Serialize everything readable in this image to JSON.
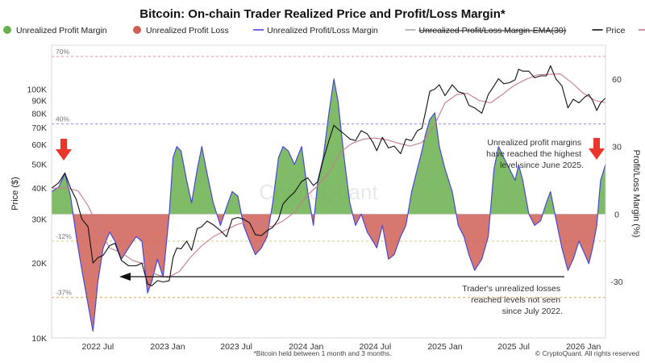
{
  "chart_data": {
    "type": "area",
    "title": "Bitcoin: On-chain Trader Realized Price and Profit/Loss Margin*",
    "footnote": "*Bitcoin held between 1 month and 3 months.",
    "copyright": "© CryptoQuant. All rights reserved",
    "watermark": "CryptoQuant",
    "legend_position": "top",
    "legend": [
      {
        "label": "Unrealized Profit Margin",
        "kind": "dot",
        "color": "#6aaf4e",
        "strike": false
      },
      {
        "label": "Unrealized Profit Loss",
        "kind": "dot",
        "color": "#cf5f57",
        "strike": false
      },
      {
        "label": "Unrealized Profit/Loss Margin",
        "kind": "line",
        "color": "#4848d8",
        "strike": false
      },
      {
        "label": "Unrealized Profit/Loss Margin-EMA(30)",
        "kind": "line",
        "color": "#a8a8a8",
        "strike": true
      },
      {
        "label": "Price",
        "kind": "line",
        "color": "#111111",
        "strike": false
      },
      {
        "label": "Realized Price",
        "kind": "line",
        "color": "#c77a8e",
        "strike": false
      }
    ],
    "colors": {
      "profit": "#6aaf4e",
      "loss": "#cf5f57",
      "margin": "#4848d8",
      "price": "#111111",
      "realized": "#c77a8e",
      "ref_top": "#d98a8a",
      "ref_bottom": "#7e7ee0"
    },
    "x_axis": {
      "range": [
        "2022-03-01",
        "2026-02-28"
      ],
      "ticks": [
        {
          "date": "2022-07-01",
          "label": "2022 Jul"
        },
        {
          "date": "2023-01-01",
          "label": "2023 Jan"
        },
        {
          "date": "2023-07-01",
          "label": "2023 Jul"
        },
        {
          "date": "2024-01-01",
          "label": "2024 Jan"
        },
        {
          "date": "2024-07-01",
          "label": "2024 Jul"
        },
        {
          "date": "2025-01-01",
          "label": "2025 Jan"
        },
        {
          "date": "2025-07-01",
          "label": "2025 Jul"
        },
        {
          "date": "2026-01-01",
          "label": "2026 Jan"
        }
      ]
    },
    "y_left": {
      "label": "Price ($)",
      "scale": "log",
      "range": [
        10000,
        150000
      ],
      "ticks": [
        {
          "value": 10000,
          "label": "10K"
        },
        {
          "value": 20000,
          "label": "20K"
        },
        {
          "value": 30000,
          "label": "30K"
        },
        {
          "value": 40000,
          "label": "40K"
        },
        {
          "value": 50000,
          "label": "50K"
        },
        {
          "value": 60000,
          "label": "60K"
        },
        {
          "value": 70000,
          "label": "70K"
        },
        {
          "value": 80000,
          "label": "80K"
        },
        {
          "value": 90000,
          "label": "90K"
        },
        {
          "value": 100000,
          "label": "100K"
        }
      ]
    },
    "y_right": {
      "label": "Profit/Loss Margin (%)",
      "range": [
        -55,
        75
      ],
      "ticks": [
        {
          "value": 60,
          "label": "60"
        },
        {
          "value": 30,
          "label": "30"
        },
        {
          "value": 0,
          "label": "0"
        },
        {
          "value": -30,
          "label": "-30"
        }
      ]
    },
    "reference_lines": [
      {
        "value": 70,
        "label": "70%",
        "color": "#d98a8a"
      },
      {
        "value": 40,
        "label": "40%",
        "color": "#7e7ee0"
      },
      {
        "value": -12,
        "label": "-12%",
        "color": "#c9c27a"
      },
      {
        "value": -37,
        "label": "-37%",
        "color": "#d9a35a"
      }
    ],
    "annotations": [
      {
        "text": [
          "Unrealized profit margins",
          "have reached the highest",
          "level since June 2025."
        ]
      },
      {
        "text": [
          "Trader's unrealized losses",
          "reached levels not seen",
          "since July 2022."
        ]
      }
    ],
    "series": [
      {
        "name": "Unrealized Profit/Loss Margin",
        "axis": "right",
        "x": [
          "2022-03-01",
          "2022-03-20",
          "2022-04-05",
          "2022-04-20",
          "2022-05-05",
          "2022-05-20",
          "2022-06-05",
          "2022-06-18",
          "2022-07-01",
          "2022-07-15",
          "2022-08-01",
          "2022-08-15",
          "2022-09-01",
          "2022-09-20",
          "2022-10-10",
          "2022-10-25",
          "2022-11-09",
          "2022-11-20",
          "2022-12-05",
          "2022-12-20",
          "2023-01-05",
          "2023-01-15",
          "2023-01-25",
          "2023-02-05",
          "2023-02-20",
          "2023-03-05",
          "2023-03-20",
          "2023-04-01",
          "2023-04-15",
          "2023-05-01",
          "2023-05-20",
          "2023-06-05",
          "2023-06-20",
          "2023-07-05",
          "2023-07-20",
          "2023-08-05",
          "2023-08-20",
          "2023-09-05",
          "2023-09-20",
          "2023-10-05",
          "2023-10-20",
          "2023-11-01",
          "2023-11-15",
          "2023-12-01",
          "2023-12-20",
          "2024-01-05",
          "2024-01-20",
          "2024-02-01",
          "2024-02-15",
          "2024-03-01",
          "2024-03-14",
          "2024-03-25",
          "2024-04-10",
          "2024-04-25",
          "2024-05-10",
          "2024-05-25",
          "2024-06-10",
          "2024-06-25",
          "2024-07-05",
          "2024-07-20",
          "2024-08-05",
          "2024-08-20",
          "2024-09-06",
          "2024-09-20",
          "2024-10-05",
          "2024-10-20",
          "2024-11-01",
          "2024-11-10",
          "2024-11-22",
          "2024-12-05",
          "2024-12-17",
          "2025-01-01",
          "2025-01-20",
          "2025-02-05",
          "2025-02-20",
          "2025-03-05",
          "2025-03-20",
          "2025-04-08",
          "2025-04-25",
          "2025-05-10",
          "2025-05-22",
          "2025-06-05",
          "2025-06-20",
          "2025-07-05",
          "2025-07-14",
          "2025-07-25",
          "2025-08-10",
          "2025-08-25",
          "2025-09-10",
          "2025-09-25",
          "2025-10-06",
          "2025-10-20",
          "2025-11-05",
          "2025-11-21",
          "2025-12-05",
          "2025-12-20",
          "2026-01-05",
          "2026-01-15",
          "2026-01-25",
          "2026-02-05",
          "2026-02-15",
          "2026-02-28"
        ],
        "y": [
          10,
          12,
          18,
          8,
          -10,
          -25,
          -40,
          -52,
          -30,
          -15,
          -8,
          -12,
          -20,
          -15,
          -10,
          -12,
          -35,
          -30,
          -20,
          -28,
          0,
          25,
          30,
          28,
          15,
          5,
          20,
          30,
          18,
          5,
          -5,
          3,
          10,
          8,
          -5,
          -12,
          -18,
          -15,
          -10,
          5,
          25,
          30,
          28,
          22,
          30,
          10,
          -5,
          15,
          25,
          45,
          60,
          50,
          25,
          5,
          -5,
          0,
          -8,
          -12,
          -15,
          -5,
          -20,
          -18,
          -10,
          -5,
          10,
          20,
          28,
          35,
          42,
          45,
          30,
          20,
          10,
          -5,
          -10,
          -18,
          -25,
          -20,
          -10,
          20,
          30,
          25,
          20,
          15,
          22,
          15,
          0,
          -5,
          -3,
          5,
          10,
          -2,
          -15,
          -25,
          -20,
          -12,
          -18,
          -22,
          -15,
          -5,
          15,
          22
        ]
      },
      {
        "name": "Price",
        "axis": "left",
        "x": [
          "2022-03-01",
          "2022-03-20",
          "2022-04-05",
          "2022-04-20",
          "2022-05-05",
          "2022-05-20",
          "2022-06-05",
          "2022-06-18",
          "2022-07-01",
          "2022-07-15",
          "2022-08-01",
          "2022-08-15",
          "2022-09-01",
          "2022-09-20",
          "2022-10-10",
          "2022-10-25",
          "2022-11-09",
          "2022-11-20",
          "2022-12-05",
          "2022-12-20",
          "2023-01-05",
          "2023-01-15",
          "2023-01-25",
          "2023-02-05",
          "2023-02-20",
          "2023-03-05",
          "2023-03-20",
          "2023-04-01",
          "2023-04-15",
          "2023-05-01",
          "2023-05-20",
          "2023-06-05",
          "2023-06-20",
          "2023-07-05",
          "2023-07-20",
          "2023-08-05",
          "2023-08-20",
          "2023-09-05",
          "2023-09-20",
          "2023-10-05",
          "2023-10-20",
          "2023-11-01",
          "2023-11-15",
          "2023-12-01",
          "2023-12-20",
          "2024-01-05",
          "2024-01-20",
          "2024-02-01",
          "2024-02-15",
          "2024-03-01",
          "2024-03-14",
          "2024-03-25",
          "2024-04-10",
          "2024-04-25",
          "2024-05-10",
          "2024-05-25",
          "2024-06-10",
          "2024-06-25",
          "2024-07-05",
          "2024-07-20",
          "2024-08-05",
          "2024-08-20",
          "2024-09-06",
          "2024-09-20",
          "2024-10-05",
          "2024-10-20",
          "2024-11-01",
          "2024-11-10",
          "2024-11-22",
          "2024-12-05",
          "2024-12-17",
          "2025-01-01",
          "2025-01-20",
          "2025-02-05",
          "2025-02-20",
          "2025-03-05",
          "2025-03-20",
          "2025-04-08",
          "2025-04-25",
          "2025-05-10",
          "2025-05-22",
          "2025-06-05",
          "2025-06-20",
          "2025-07-05",
          "2025-07-14",
          "2025-07-25",
          "2025-08-10",
          "2025-08-25",
          "2025-09-10",
          "2025-09-25",
          "2025-10-06",
          "2025-10-20",
          "2025-11-05",
          "2025-11-21",
          "2025-12-05",
          "2025-12-20",
          "2026-01-05",
          "2026-01-15",
          "2026-01-25",
          "2026-02-05",
          "2026-02-15",
          "2026-02-28"
        ],
        "y": [
          40000,
          42000,
          46000,
          40000,
          36000,
          30000,
          28000,
          20000,
          21000,
          21500,
          23500,
          24000,
          20500,
          19500,
          19500,
          20000,
          16500,
          16200,
          17000,
          16800,
          17000,
          21000,
          23000,
          22800,
          24500,
          22500,
          27500,
          28000,
          29500,
          28500,
          27000,
          25500,
          30000,
          30500,
          30000,
          29000,
          26000,
          25800,
          27000,
          27800,
          30000,
          34500,
          36500,
          38500,
          42500,
          44000,
          41000,
          42500,
          52000,
          62000,
          71500,
          69000,
          66000,
          63000,
          62000,
          68000,
          66000,
          61000,
          56500,
          64000,
          58000,
          59000,
          55000,
          63000,
          62000,
          68000,
          69500,
          80000,
          98000,
          100000,
          104000,
          94000,
          104000,
          97500,
          96000,
          86000,
          84000,
          80000,
          95000,
          103000,
          110000,
          105000,
          106000,
          109000,
          120000,
          118000,
          118000,
          111000,
          113000,
          113000,
          124000,
          110000,
          103000,
          84000,
          91000,
          88000,
          93000,
          95000,
          90000,
          82000,
          88000,
          92000
        ]
      },
      {
        "name": "Realized Price",
        "axis": "left",
        "x": [
          "2022-03-01",
          "2022-04-10",
          "2022-05-10",
          "2022-06-05",
          "2022-07-01",
          "2022-08-01",
          "2022-09-01",
          "2022-10-01",
          "2022-11-01",
          "2022-12-01",
          "2023-01-01",
          "2023-02-01",
          "2023-03-01",
          "2023-04-01",
          "2023-05-01",
          "2023-06-01",
          "2023-07-01",
          "2023-08-01",
          "2023-09-01",
          "2023-10-01",
          "2023-11-01",
          "2023-12-01",
          "2024-01-01",
          "2024-02-01",
          "2024-03-01",
          "2024-04-01",
          "2024-05-01",
          "2024-06-01",
          "2024-07-01",
          "2024-08-01",
          "2024-09-01",
          "2024-10-01",
          "2024-11-01",
          "2024-12-01",
          "2025-01-01",
          "2025-02-01",
          "2025-03-01",
          "2025-04-01",
          "2025-05-01",
          "2025-06-01",
          "2025-07-01",
          "2025-08-01",
          "2025-09-01",
          "2025-10-01",
          "2025-11-01",
          "2025-12-01",
          "2026-01-01",
          "2026-02-01",
          "2026-02-28"
        ],
        "y": [
          40000,
          40000,
          39000,
          34000,
          28000,
          23000,
          22000,
          20500,
          19800,
          18000,
          17500,
          18500,
          21000,
          23500,
          25500,
          27000,
          28500,
          29500,
          29000,
          28000,
          29500,
          32000,
          37000,
          41000,
          46000,
          56000,
          60500,
          63000,
          63500,
          62500,
          60500,
          59000,
          61000,
          70000,
          88000,
          95000,
          96000,
          90000,
          88000,
          95000,
          103000,
          109000,
          114000,
          114500,
          115000,
          106000,
          96000,
          90000,
          88000
        ]
      }
    ]
  }
}
